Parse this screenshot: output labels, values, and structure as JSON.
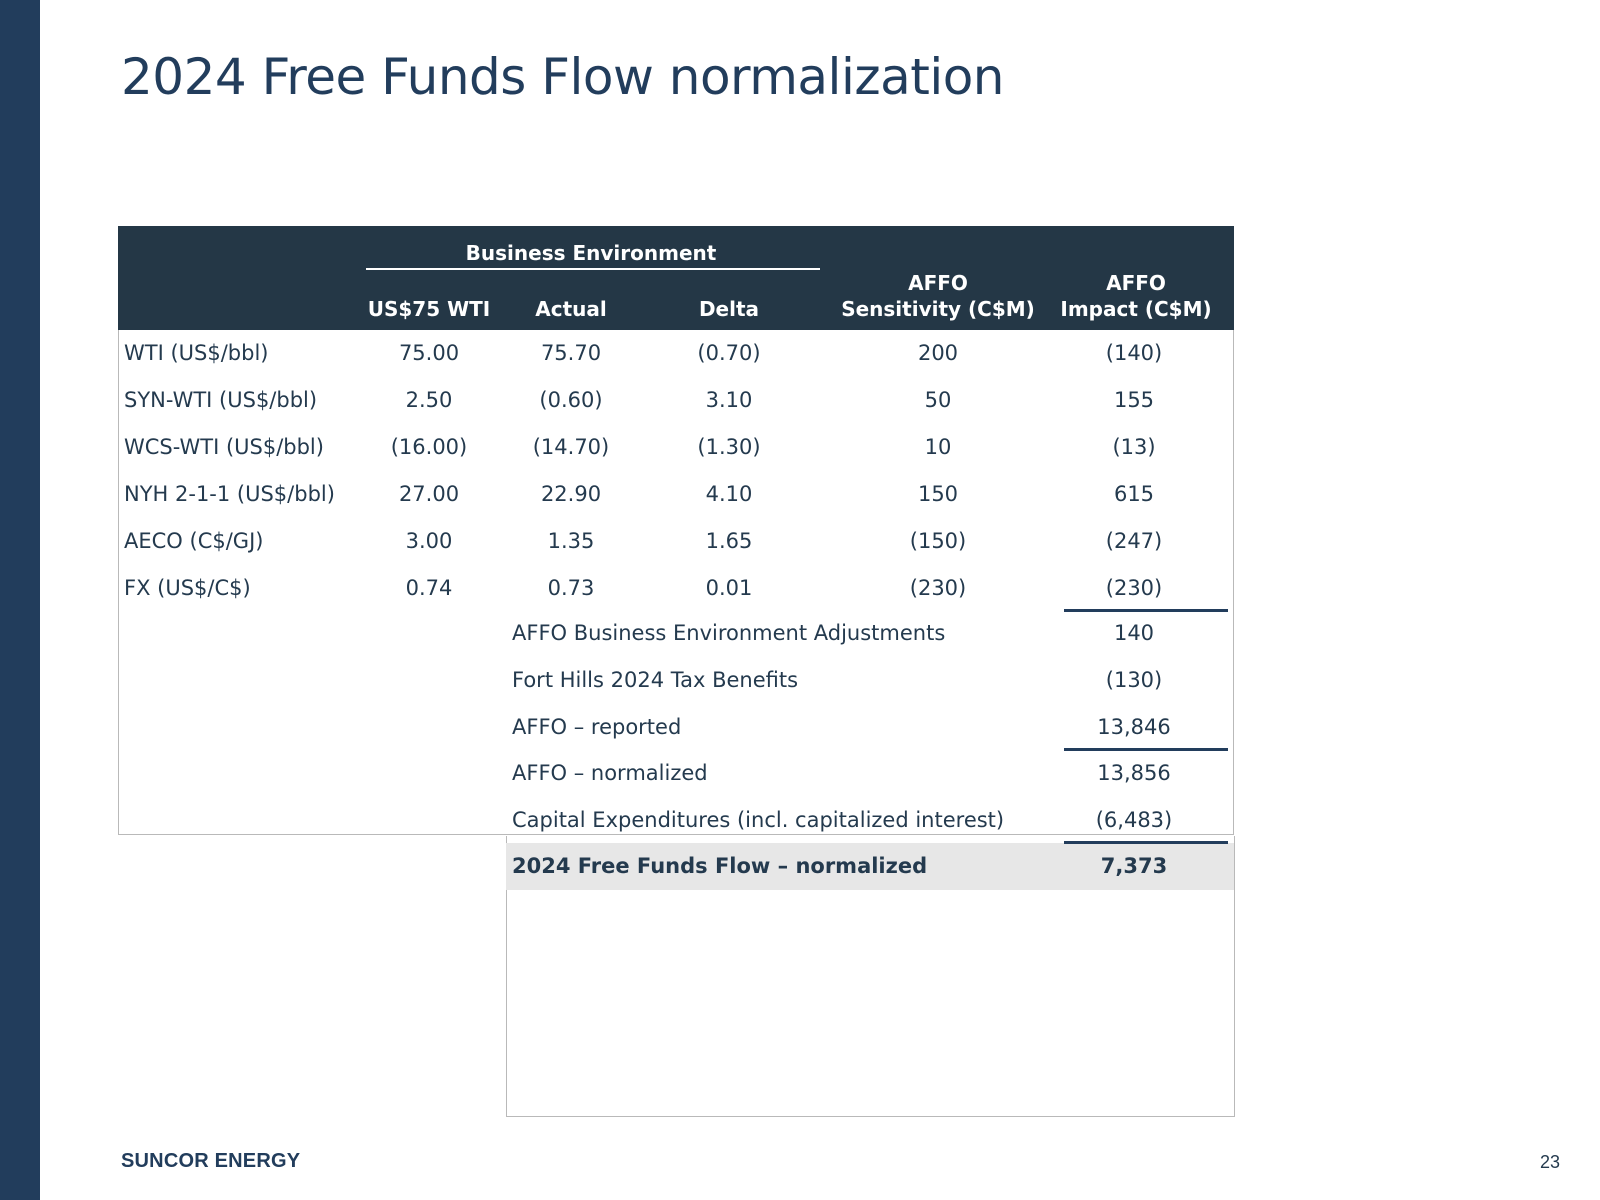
{
  "slide": {
    "title": "2024 Free Funds Flow normalization",
    "brand": "SUNCOR ENERGY",
    "page_number": "23"
  },
  "table": {
    "group_header": "Business Environment",
    "headers": {
      "col1": "US$75 WTI",
      "col2": "Actual",
      "col3": "Delta",
      "col4_line1": "AFFO",
      "col4_line2": "Sensitivity (C$M)",
      "col5_line1": "AFFO",
      "col5_line2": "Impact (C$M)"
    },
    "rows": [
      {
        "label": "WTI (US$/bbl)",
        "wti75": "75.00",
        "actual": "75.70",
        "delta": "(0.70)",
        "sensitivity": "200",
        "impact": "(140)"
      },
      {
        "label": "SYN-WTI (US$/bbl)",
        "wti75": "2.50",
        "actual": "(0.60)",
        "delta": "3.10",
        "sensitivity": "50",
        "impact": "155"
      },
      {
        "label": "WCS-WTI (US$/bbl)",
        "wti75": "(16.00)",
        "actual": "(14.70)",
        "delta": "(1.30)",
        "sensitivity": "10",
        "impact": "(13)"
      },
      {
        "label": "NYH 2-1-1 (US$/bbl)",
        "wti75": "27.00",
        "actual": "22.90",
        "delta": "4.10",
        "sensitivity": "150",
        "impact": "615"
      },
      {
        "label": "AECO (C$/GJ)",
        "wti75": "3.00",
        "actual": "1.35",
        "delta": "1.65",
        "sensitivity": "(150)",
        "impact": "(247)"
      },
      {
        "label": "FX (US$/C$)",
        "wti75": "0.74",
        "actual": "0.73",
        "delta": "0.01",
        "sensitivity": "(230)",
        "impact": "(230)"
      }
    ],
    "summary": [
      {
        "label": "AFFO Business Environment Adjustments",
        "value": "140"
      },
      {
        "label": "Fort Hills 2024 Tax Benefits",
        "value": "(130)"
      },
      {
        "label": "AFFO – reported",
        "value": "13,846"
      },
      {
        "label": "AFFO – normalized",
        "value": "13,856"
      },
      {
        "label": "Capital Expenditures (incl. capitalized interest)",
        "value": "(6,483)"
      },
      {
        "label": "2024 Free Funds Flow – normalized",
        "value": "7,373"
      }
    ]
  }
}
